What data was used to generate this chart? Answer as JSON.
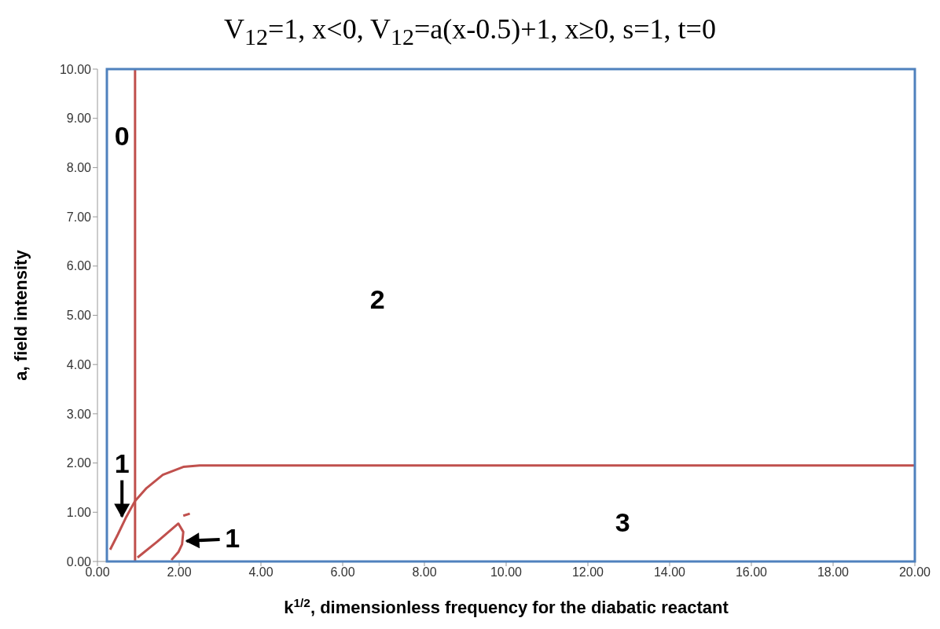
{
  "chart_data": {
    "type": "line",
    "title": "V$_{12}$=1, x<0, V$_{12}$=a(x-0.5)+1, x≥0, s=1, t=0",
    "xlabel": "k$^{1/2}$, dimensionless frequency for the diabatic reactant",
    "ylabel": "a, field intensity",
    "xlim": [
      0,
      20
    ],
    "ylim": [
      0,
      10
    ],
    "xticks": [
      {
        "value": 0,
        "label": "0.00"
      },
      {
        "value": 2,
        "label": "2.00"
      },
      {
        "value": 4,
        "label": "4.00"
      },
      {
        "value": 6,
        "label": "6.00"
      },
      {
        "value": 8,
        "label": "8.00"
      },
      {
        "value": 10,
        "label": "10.00"
      },
      {
        "value": 12,
        "label": "12.00"
      },
      {
        "value": 14,
        "label": "14.00"
      },
      {
        "value": 16,
        "label": "16.00"
      },
      {
        "value": 18,
        "label": "18.00"
      },
      {
        "value": 20,
        "label": "20.00"
      }
    ],
    "yticks": [
      {
        "value": 0,
        "label": "0.00"
      },
      {
        "value": 1,
        "label": "1.00"
      },
      {
        "value": 2,
        "label": "2.00"
      },
      {
        "value": 3,
        "label": "3.00"
      },
      {
        "value": 4,
        "label": "4.00"
      },
      {
        "value": 5,
        "label": "5.00"
      },
      {
        "value": 6,
        "label": "6.00"
      },
      {
        "value": 7,
        "label": "7.00"
      },
      {
        "value": 8,
        "label": "8.00"
      },
      {
        "value": 9,
        "label": "9.00"
      },
      {
        "value": 10,
        "label": "10.00"
      }
    ],
    "grid": false,
    "marker": "none",
    "line_style": "solid",
    "series": [
      {
        "color": "#c0504d",
        "x": [
          0.92,
          0.92
        ],
        "values": [
          0,
          10
        ]
      },
      {
        "color": "#c0504d",
        "x": [
          0.31,
          0.5,
          0.69,
          0.92,
          1.2,
          1.6,
          2.1,
          2.5,
          5,
          10,
          15,
          20
        ],
        "values": [
          0.24,
          0.55,
          0.88,
          1.23,
          1.49,
          1.76,
          1.92,
          1.95,
          1.95,
          1.95,
          1.95,
          1.95
        ]
      },
      {
        "color": "#c0504d",
        "x": [
          0.98,
          1.46,
          1.98,
          2.1,
          2.07,
          1.98,
          1.81
        ],
        "values": [
          0.08,
          0.4,
          0.77,
          0.6,
          0.35,
          0.19,
          0.03
        ]
      },
      {
        "color": "#c0504d",
        "x": [
          2.1,
          2.26
        ],
        "values": [
          0.93,
          0.97
        ]
      }
    ],
    "annotations": [
      "0",
      "1",
      "2",
      "3",
      "1"
    ]
  }
}
